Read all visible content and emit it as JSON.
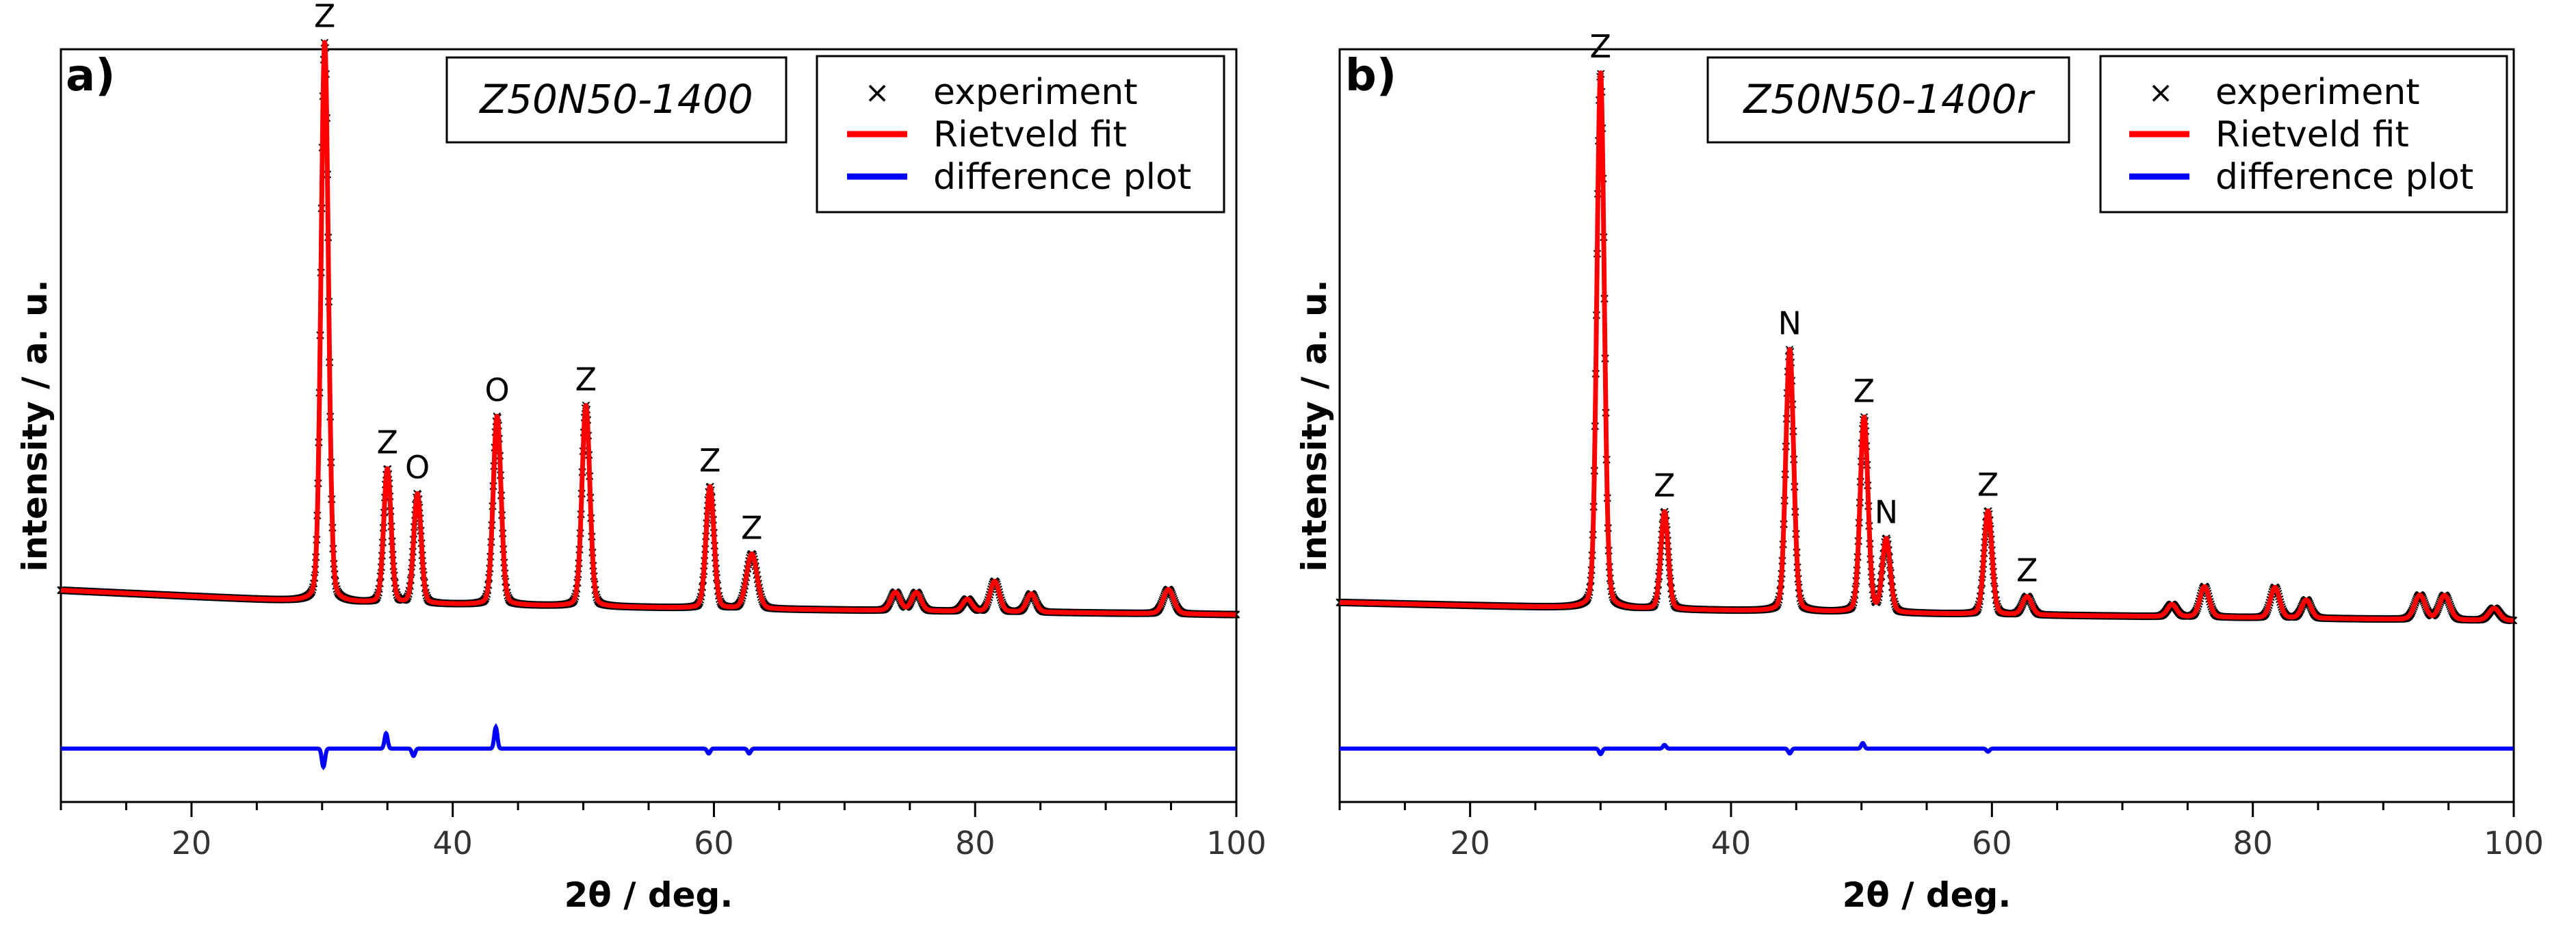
{
  "chart_data": [
    {
      "type": "line",
      "panel_label": "a)",
      "title": "Z50N50-1400",
      "xlabel": "2θ / deg.",
      "ylabel": "intensity / a. u.",
      "xlim": [
        10,
        100
      ],
      "ylim": [
        0,
        100
      ],
      "xticks": [
        20,
        40,
        60,
        80,
        100
      ],
      "legend": {
        "position": "top-right",
        "entries": [
          "experiment",
          "Rietveld fit",
          "difference plot"
        ]
      },
      "series": [
        {
          "name": "experiment",
          "style": "x-markers",
          "color": "#000000"
        },
        {
          "name": "Rietveld fit",
          "style": "line",
          "color": "#ff0000"
        },
        {
          "name": "difference plot",
          "style": "line",
          "color": "#0000ff"
        }
      ],
      "background": [
        [
          10,
          16
        ],
        [
          30,
          14
        ],
        [
          60,
          13
        ],
        [
          100,
          12
        ]
      ],
      "peaks": [
        {
          "x": 30.2,
          "height": 92,
          "width": 0.28,
          "label": "Z"
        },
        {
          "x": 35.0,
          "height": 22,
          "width": 0.28,
          "label": "Z"
        },
        {
          "x": 37.3,
          "height": 18,
          "width": 0.28,
          "label": "O"
        },
        {
          "x": 43.4,
          "height": 31,
          "width": 0.3,
          "label": "O"
        },
        {
          "x": 50.2,
          "height": 33,
          "width": 0.3,
          "label": "Z"
        },
        {
          "x": 59.7,
          "height": 20,
          "width": 0.3,
          "label": "Z"
        },
        {
          "x": 62.9,
          "height": 9,
          "width": 0.4,
          "label": "Z"
        },
        {
          "x": 73.9,
          "height": 3,
          "width": 0.35
        },
        {
          "x": 75.5,
          "height": 3,
          "width": 0.35
        },
        {
          "x": 79.4,
          "height": 2,
          "width": 0.35
        },
        {
          "x": 81.5,
          "height": 5,
          "width": 0.35
        },
        {
          "x": 84.3,
          "height": 3,
          "width": 0.35
        },
        {
          "x": 94.8,
          "height": 4,
          "width": 0.4
        }
      ],
      "difference_baseline": -10,
      "difference_spikes": [
        {
          "x": 30.1,
          "dy": -3
        },
        {
          "x": 34.9,
          "dy": 2.5
        },
        {
          "x": 37.0,
          "dy": -1.2
        },
        {
          "x": 43.3,
          "dy": 3.5
        },
        {
          "x": 59.6,
          "dy": -0.8
        },
        {
          "x": 62.7,
          "dy": -0.8
        }
      ]
    },
    {
      "type": "line",
      "panel_label": "b)",
      "title": "Z50N50-1400r",
      "xlabel": "2θ / deg.",
      "ylabel": "intensity / a. u.",
      "xlim": [
        10,
        100
      ],
      "ylim": [
        0,
        100
      ],
      "xticks": [
        20,
        40,
        60,
        80,
        100
      ],
      "legend": {
        "position": "top-right",
        "entries": [
          "experiment",
          "Rietveld fit",
          "difference plot"
        ]
      },
      "series": [
        {
          "name": "experiment",
          "style": "x-markers",
          "color": "#000000"
        },
        {
          "name": "Rietveld fit",
          "style": "line",
          "color": "#ff0000"
        },
        {
          "name": "difference plot",
          "style": "line",
          "color": "#0000ff"
        }
      ],
      "background": [
        [
          10,
          14
        ],
        [
          30,
          13
        ],
        [
          60,
          12
        ],
        [
          100,
          11
        ]
      ],
      "peaks": [
        {
          "x": 30.0,
          "height": 88,
          "width": 0.28,
          "label": "Z"
        },
        {
          "x": 34.9,
          "height": 16,
          "width": 0.28,
          "label": "Z"
        },
        {
          "x": 44.5,
          "height": 43,
          "width": 0.3,
          "label": "N"
        },
        {
          "x": 50.2,
          "height": 32,
          "width": 0.3,
          "label": "Z"
        },
        {
          "x": 51.9,
          "height": 12,
          "width": 0.3,
          "label": "N"
        },
        {
          "x": 59.7,
          "height": 17,
          "width": 0.3,
          "label": "Z"
        },
        {
          "x": 62.7,
          "height": 3,
          "width": 0.35,
          "label": "Z"
        },
        {
          "x": 73.8,
          "height": 2,
          "width": 0.35
        },
        {
          "x": 76.3,
          "height": 5,
          "width": 0.35
        },
        {
          "x": 81.7,
          "height": 5,
          "width": 0.35
        },
        {
          "x": 84.1,
          "height": 3,
          "width": 0.35
        },
        {
          "x": 92.8,
          "height": 4,
          "width": 0.4
        },
        {
          "x": 94.7,
          "height": 4,
          "width": 0.4
        },
        {
          "x": 98.5,
          "height": 2,
          "width": 0.4
        }
      ],
      "difference_baseline": -10,
      "difference_spikes": [
        {
          "x": 30.0,
          "dy": -0.9
        },
        {
          "x": 34.9,
          "dy": 0.6
        },
        {
          "x": 44.5,
          "dy": -0.8
        },
        {
          "x": 50.1,
          "dy": 0.9
        },
        {
          "x": 59.7,
          "dy": -0.5
        }
      ]
    }
  ]
}
